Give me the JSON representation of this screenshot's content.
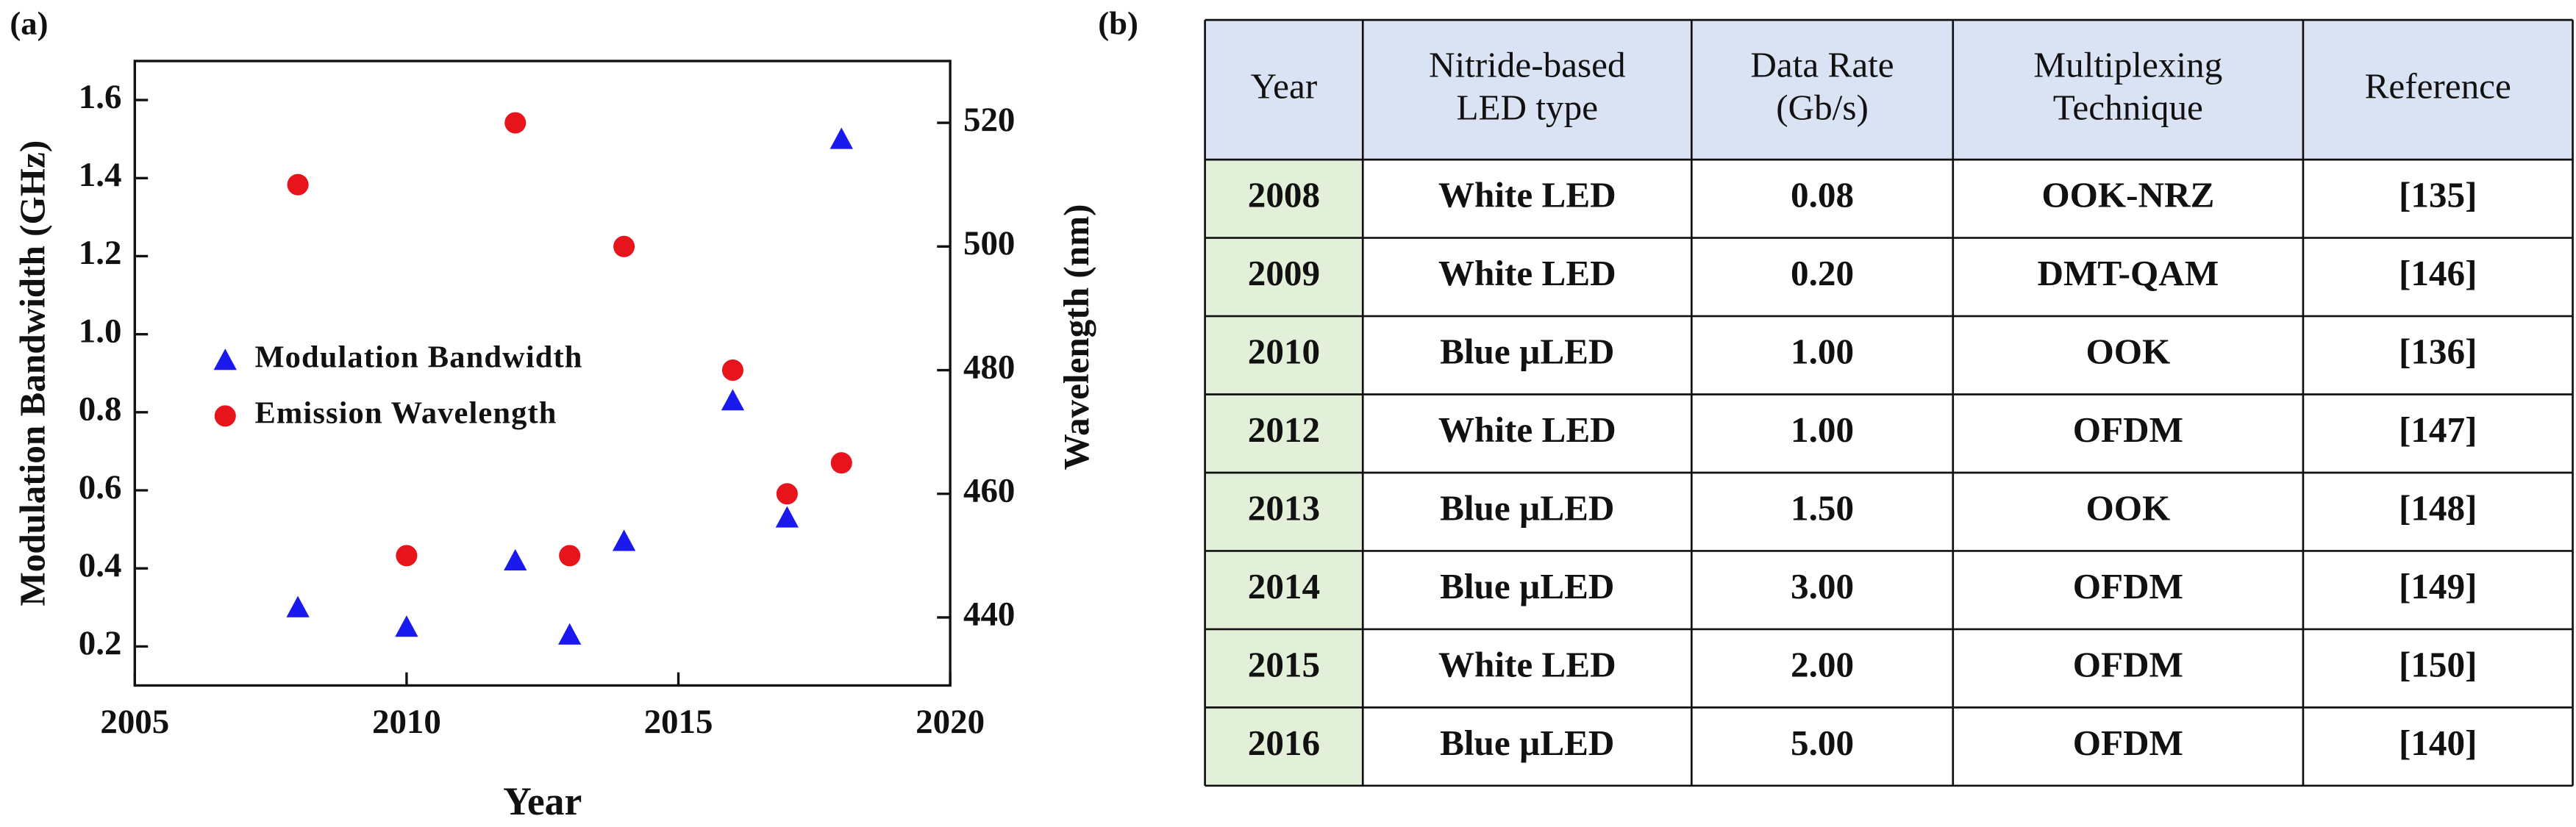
{
  "chart_data": {
    "type": "scatter",
    "panel_label": "(a)",
    "x_label": "Year",
    "y_label": "Modulation Bandwidth (GHz)",
    "y2_label": "Wavelength (nm)",
    "x": [
      2008,
      2010,
      2012,
      2013,
      2014,
      2016,
      2017,
      2018
    ],
    "series": [
      {
        "name": "Modulation Bandwidth",
        "color": "#1a1aee",
        "marker": "triangle",
        "values": [
          0.3,
          0.25,
          0.42,
          0.23,
          0.47,
          0.83,
          0.53,
          1.5
        ]
      },
      {
        "name": "Emission Wavelength",
        "color": "#e8141b",
        "marker": "circle",
        "axis": "y2",
        "values": [
          510,
          450,
          520,
          450,
          500,
          480,
          460,
          465
        ]
      }
    ],
    "xlim": [
      2005,
      2020
    ],
    "xticks": [
      2005,
      2010,
      2015,
      2020
    ],
    "ylim": [
      0.1,
      1.7
    ],
    "yticks": [
      0.2,
      0.4,
      0.6,
      0.8,
      {
        "value": 1,
        "label": "1.0"
      },
      1.2,
      1.4,
      1.6
    ],
    "y2lim": [
      429,
      530
    ],
    "y2ticks": [
      440,
      460,
      480,
      500,
      520
    ],
    "legend": "middle-left"
  },
  "table": {
    "panel_label": "(b)",
    "header": [
      [
        "Year"
      ],
      [
        "Nitride-based",
        "LED type"
      ],
      [
        "Data Rate",
        "(Gb/s)"
      ],
      [
        "Multiplexing",
        "Technique"
      ],
      [
        "Reference"
      ]
    ],
    "rows": [
      [
        "2008",
        "White LED",
        "0.08",
        "OOK-NRZ",
        "[135]"
      ],
      [
        "2009",
        "White LED",
        "0.20",
        "DMT-QAM",
        "[146]"
      ],
      [
        "2010",
        "Blue µLED",
        "1.00",
        "OOK",
        "[136]"
      ],
      [
        "2012",
        "White LED",
        "1.00",
        "OFDM",
        "[147]"
      ],
      [
        "2013",
        "Blue µLED",
        "1.50",
        "OOK",
        "[148]"
      ],
      [
        "2014",
        "Blue µLED",
        "3.00",
        "OFDM",
        "[149]"
      ],
      [
        "2015",
        "White LED",
        "2.00",
        "OFDM",
        "[150]"
      ],
      [
        "2016",
        "Blue µLED",
        "5.00",
        "OFDM",
        "[140]"
      ]
    ]
  }
}
